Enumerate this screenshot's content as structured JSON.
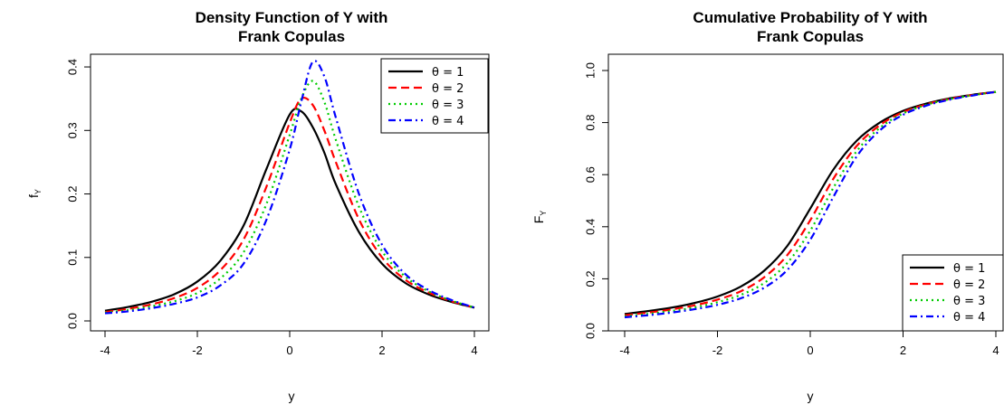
{
  "chart_data": [
    {
      "type": "line",
      "title_lines": [
        "Density Function of Y with",
        "Frank Copulas"
      ],
      "xlabel": "y",
      "ylabel": "f",
      "ylabel_sub": "Y",
      "xlim": [
        -4,
        4
      ],
      "ylim": [
        0,
        0.42
      ],
      "xticks": [
        -4,
        -2,
        0,
        2,
        4
      ],
      "yticks": [
        0.0,
        0.1,
        0.2,
        0.3,
        0.4
      ],
      "ytick_labels": [
        "0.0",
        "0.1",
        "0.2",
        "0.3",
        "0.4"
      ],
      "xtick_labels": [
        "-4",
        "-2",
        "0",
        "2",
        "4"
      ],
      "legend_position": "top-right",
      "x": [
        -4,
        -3.5,
        -3,
        -2.5,
        -2,
        -1.5,
        -1,
        -0.5,
        0,
        0.25,
        0.5,
        0.75,
        1,
        1.5,
        2,
        2.5,
        3,
        3.5,
        4
      ],
      "series": [
        {
          "name": "θ = 1",
          "color": "#000000",
          "dash": "solid",
          "values": [
            0.016,
            0.022,
            0.03,
            0.042,
            0.062,
            0.095,
            0.15,
            0.24,
            0.325,
            0.33,
            0.305,
            0.265,
            0.215,
            0.14,
            0.09,
            0.06,
            0.042,
            0.03,
            0.021
          ]
        },
        {
          "name": "θ = 2",
          "color": "#ff0000",
          "dash": "dashed",
          "values": [
            0.014,
            0.019,
            0.026,
            0.036,
            0.052,
            0.08,
            0.128,
            0.212,
            0.312,
            0.35,
            0.34,
            0.3,
            0.25,
            0.16,
            0.1,
            0.065,
            0.045,
            0.031,
            0.021
          ]
        },
        {
          "name": "θ = 3",
          "color": "#00cc00",
          "dash": "dotted",
          "values": [
            0.013,
            0.017,
            0.023,
            0.031,
            0.044,
            0.067,
            0.108,
            0.185,
            0.293,
            0.35,
            0.378,
            0.345,
            0.285,
            0.18,
            0.11,
            0.07,
            0.047,
            0.032,
            0.021
          ]
        },
        {
          "name": "θ = 4",
          "color": "#0000ff",
          "dash": "dotdash",
          "values": [
            0.012,
            0.015,
            0.02,
            0.027,
            0.037,
            0.056,
            0.09,
            0.16,
            0.27,
            0.345,
            0.408,
            0.385,
            0.32,
            0.2,
            0.12,
            0.074,
            0.049,
            0.033,
            0.021
          ]
        }
      ],
      "legend": [
        "θ = 1",
        "θ = 2",
        "θ = 3",
        "θ = 4"
      ]
    },
    {
      "type": "line",
      "title_lines": [
        "Cumulative Probability of Y with",
        "Frank Copulas"
      ],
      "xlabel": "y",
      "ylabel": "F",
      "ylabel_sub": "Y",
      "xlim": [
        -4,
        4
      ],
      "ylim": [
        0,
        1.0
      ],
      "xticks": [
        -4,
        -2,
        0,
        2,
        4
      ],
      "yticks": [
        0.0,
        0.2,
        0.4,
        0.6,
        0.8,
        1.0
      ],
      "ytick_labels": [
        "0.0",
        "0.2",
        "0.4",
        "0.6",
        "0.8",
        "1.0"
      ],
      "xtick_labels": [
        "-4",
        "-2",
        "0",
        "2",
        "4"
      ],
      "legend_position": "bottom-right",
      "x": [
        -4,
        -3.5,
        -3,
        -2.5,
        -2,
        -1.5,
        -1,
        -0.5,
        0,
        0.5,
        1,
        1.5,
        2,
        2.5,
        3,
        3.5,
        4
      ],
      "series": [
        {
          "name": "θ = 1",
          "color": "#000000",
          "dash": "solid",
          "values": [
            0.065,
            0.076,
            0.089,
            0.107,
            0.132,
            0.17,
            0.23,
            0.325,
            0.47,
            0.62,
            0.73,
            0.8,
            0.845,
            0.873,
            0.893,
            0.907,
            0.918
          ]
        },
        {
          "name": "θ = 2",
          "color": "#ff0000",
          "dash": "dashed",
          "values": [
            0.06,
            0.07,
            0.082,
            0.098,
            0.12,
            0.152,
            0.205,
            0.29,
            0.425,
            0.585,
            0.71,
            0.79,
            0.84,
            0.87,
            0.891,
            0.906,
            0.918
          ]
        },
        {
          "name": "θ = 3",
          "color": "#00cc00",
          "dash": "dotted",
          "values": [
            0.056,
            0.065,
            0.076,
            0.09,
            0.11,
            0.138,
            0.183,
            0.26,
            0.385,
            0.55,
            0.69,
            0.78,
            0.835,
            0.868,
            0.89,
            0.905,
            0.918
          ]
        },
        {
          "name": "θ = 4",
          "color": "#0000ff",
          "dash": "dotdash",
          "values": [
            0.052,
            0.06,
            0.07,
            0.083,
            0.1,
            0.125,
            0.165,
            0.233,
            0.35,
            0.515,
            0.67,
            0.77,
            0.83,
            0.865,
            0.888,
            0.904,
            0.918
          ]
        }
      ],
      "legend": [
        "θ = 1",
        "θ = 2",
        "θ = 3",
        "θ = 4"
      ]
    }
  ]
}
